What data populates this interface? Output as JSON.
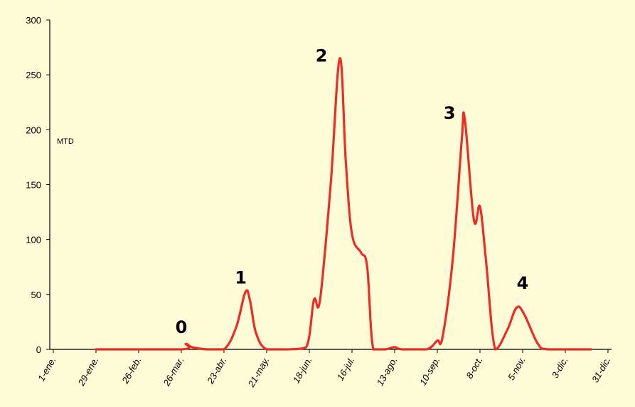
{
  "chart_data": {
    "type": "line",
    "title": "",
    "xlabel": "",
    "ylabel": "MTD",
    "ylim": [
      0,
      300
    ],
    "y_ticks": [
      "0",
      "50",
      "100",
      "150",
      "200",
      "250",
      "300"
    ],
    "x_tick_labels": [
      "1-ene.",
      "29-ene.",
      "26-feb.",
      "26-mar.",
      "23-abr.",
      "21-may.",
      "18-jun.",
      "16-jul.",
      "13-ago.",
      "10-sep.",
      "8-oct.",
      "5-nov.",
      "3-dic.",
      "31-dic."
    ],
    "grid": false,
    "legend": "none",
    "line_color": "#ef2b25",
    "series": [
      {
        "points": [
          [
            "29-ene.",
            0
          ],
          [
            "26-mar.",
            0
          ],
          [
            "29-mar.",
            5
          ],
          [
            "2-abr.",
            2
          ],
          [
            "12-abr.",
            0
          ],
          [
            "23-abr.",
            0
          ],
          [
            "1-may.",
            20
          ],
          [
            "7-may.",
            52
          ],
          [
            "10-may.",
            45
          ],
          [
            "14-may.",
            15
          ],
          [
            "21-may.",
            0
          ],
          [
            "4-jun.",
            0
          ],
          [
            "16-jun.",
            2
          ],
          [
            "21-jun.",
            45
          ],
          [
            "25-jun.",
            45
          ],
          [
            "2-jul.",
            150
          ],
          [
            "8-jul.",
            265
          ],
          [
            "12-jul.",
            170
          ],
          [
            "16-jul.",
            105
          ],
          [
            "22-jul.",
            88
          ],
          [
            "26-jul.",
            75
          ],
          [
            "30-jul.",
            0
          ],
          [
            "7-ago.",
            0
          ],
          [
            "13-ago.",
            2
          ],
          [
            "18-ago.",
            0
          ],
          [
            "3-sep.",
            0
          ],
          [
            "10-sep.",
            8
          ],
          [
            "13-sep.",
            8
          ],
          [
            "20-sep.",
            80
          ],
          [
            "26-sep.",
            190
          ],
          [
            "28-sep.",
            210
          ],
          [
            "4-oct.",
            118
          ],
          [
            "8-oct.",
            130
          ],
          [
            "12-oct.",
            80
          ],
          [
            "18-oct.",
            0
          ],
          [
            "26-oct.",
            18
          ],
          [
            "1-nov.",
            38
          ],
          [
            "6-nov.",
            32
          ],
          [
            "15-nov.",
            5
          ],
          [
            "22-nov.",
            0
          ],
          [
            "20-dic.",
            0
          ]
        ]
      }
    ],
    "annotations": [
      {
        "text": "0",
        "x": "26-mar.",
        "y": 15
      },
      {
        "text": "1",
        "x": "4-may.",
        "y": 60
      },
      {
        "text": "2",
        "x": "26-jun.",
        "y": 262
      },
      {
        "text": "3",
        "x": "18-sep.",
        "y": 210
      },
      {
        "text": "4",
        "x": "5-nov.",
        "y": 55
      }
    ]
  }
}
